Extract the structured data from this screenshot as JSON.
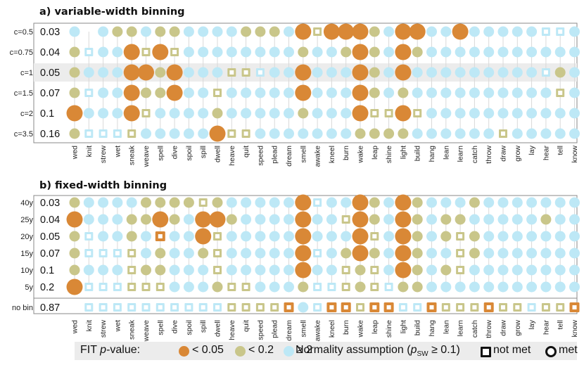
{
  "chart_data": {
    "type": "dot-matrix",
    "colors": {
      "sig": "#d98836",
      "mid": "#c9c68a",
      "high": "#bde8f6",
      "met_fill": "#ffffff",
      "high_square": "#bde8f6",
      "mid_square": "#c9c68a"
    },
    "verbs": [
      "wed",
      "knit",
      "strew",
      "wet",
      "sneak",
      "weave",
      "spell",
      "dive",
      "spoil",
      "spill",
      "dwell",
      "heave",
      "quit",
      "speed",
      "plead",
      "dream",
      "smell",
      "awake",
      "kneel",
      "burn",
      "wake",
      "leap",
      "shine",
      "light",
      "build",
      "hang",
      "lean",
      "learn",
      "catch",
      "throw",
      "draw",
      "grow",
      "lay",
      "hear",
      "tell",
      "know"
    ],
    "panels": [
      {
        "id": "a",
        "title": "a) variable-width binning",
        "rows": [
          {
            "label": "c=0.5",
            "value": "0.03",
            "cells": "hvhmmhmmhhhhmmmhsmsssmhsshhshhhhhhhh",
            "squares": "000000000000000001000000000000000110"
          },
          {
            "label": "c=0.75",
            "value": "0.04",
            "cells": "mhhhsmsmhhhhhhhhmhhmsmhsmhhhhhhhhhhh",
            "squares": "010001010000000000000000000000000000"
          },
          {
            "label": "c=1",
            "value": "0.05",
            "cells": "mhhhssmshhhmmhhhshhhsmhshhhhhhhhhhmh",
            "squares": "000000000001110000000000000000000100"
          },
          {
            "label": "c=1.5",
            "value": "0.07",
            "cells": "mhhhsmmshhmhhhhhshhhsmhmhhhhhhhhhhmh",
            "squares": "010000000010000000000000000000000010"
          },
          {
            "label": "c=2",
            "value": "0.1",
            "cells": "shhhsmhhhhmhhhhhmhhhsmmsmhhhhhhhhhhh",
            "squares": "000001000000000000000110100000000000"
          },
          {
            "label": "c=3.5",
            "value": "0.16",
            "cells": "mhhhmhhhhhsmmhhhhhhhmmmmhhhhhhmhhhhh",
            "squares": "011110000001100000000000000000100000"
          }
        ]
      },
      {
        "id": "b",
        "title": "b) fixed-width binning",
        "rows": [
          {
            "label": "40y",
            "value": "0.03",
            "cells": "mhhhhmmmmmmhhhhhshhhsmhsmhhhmhhhhhhh",
            "squares": "000000000100000001000000000000000000"
          },
          {
            "label": "25y",
            "value": "0.04",
            "cells": "shhhmmsmhssmhhhhshhmsmhsmhmmhhhhhmhh",
            "squares": "000000000000000000010000000000000000"
          },
          {
            "label": "20y",
            "value": "0.05",
            "cells": "mhhhmhshhsmhhhhhshhhsmhsmhmmmhhhhhhh",
            "squares": "010000100010000000000100000100000000"
          },
          {
            "label": "15y",
            "value": "0.07",
            "cells": "mhhhmhmhhmmhhhhhshhmsmhsmhhmmhhhhhhh",
            "squares": "011110000010000001000000000100000000"
          },
          {
            "label": "10y",
            "value": "0.1",
            "cells": "mhhhmmmhhhmhhhhhshhmmmhsmhmmhhhhhhhh",
            "squares": "000010000010000000010100000100000000"
          },
          {
            "label": "5y",
            "value": "0.2",
            "cells": "shhhmmmhhhmmmhhhmhhmmmhmmhhhhhhhhhhh",
            "squares": "011111100001100001110110000000000000"
          }
        ],
        "nobin": {
          "label": "no bin",
          "value": "0.87",
          "cells": "vhhhhhhhhhhmmmmshhssmsshhsmmmsmmhmms",
          "squares": "011111111111111101111111111111111111"
        }
      }
    ]
  },
  "legend": {
    "fit_label": "FIT",
    "fit_italic": "p",
    "fit_suffix": "-value:",
    "lt005": "< 0.05",
    "lt02": "< 0.2",
    "ge2": "≥ 2",
    "normality_prefix": "Normality assumption (",
    "normality_p": "p",
    "normality_sub": "SW",
    "normality_suffix": " ≥ 0.1)",
    "not_met": "not met",
    "met": "met"
  }
}
